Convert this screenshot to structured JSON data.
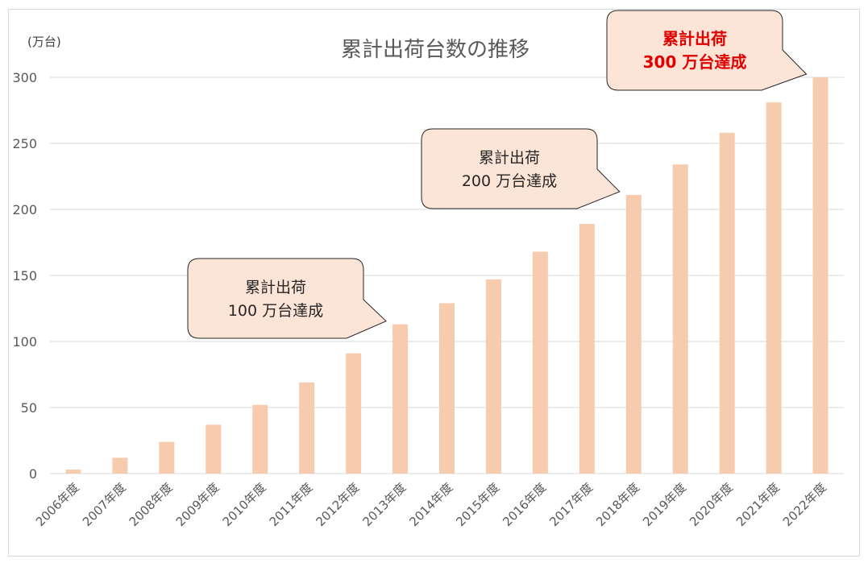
{
  "chart_data": {
    "type": "bar",
    "title": "累計出荷台数の推移",
    "ylabel": "(万台)",
    "ylim": [
      0,
      300
    ],
    "yticks": [
      0,
      50,
      100,
      150,
      200,
      250,
      300
    ],
    "categories": [
      "2006年度",
      "2007年度",
      "2008年度",
      "2009年度",
      "2010年度",
      "2011年度",
      "2012年度",
      "2013年度",
      "2014年度",
      "2015年度",
      "2016年度",
      "2017年度",
      "2018年度",
      "2019年度",
      "2020年度",
      "2021年度",
      "2022年度"
    ],
    "values": [
      3,
      12,
      24,
      37,
      52,
      69,
      91,
      113,
      129,
      147,
      168,
      189,
      211,
      234,
      258,
      281,
      300
    ],
    "grid": true,
    "bar_color": "#f7cbad",
    "annotations": [
      {
        "target": "2013年度",
        "line1": "累計出荷",
        "line2": "100 万台達成",
        "highlight": false
      },
      {
        "target": "2018年度",
        "line1": "累計出荷",
        "line2": "200 万台達成",
        "highlight": false
      },
      {
        "target": "2022年度",
        "line1": "累計出荷",
        "line2": "300 万台達成",
        "highlight": true
      }
    ]
  }
}
